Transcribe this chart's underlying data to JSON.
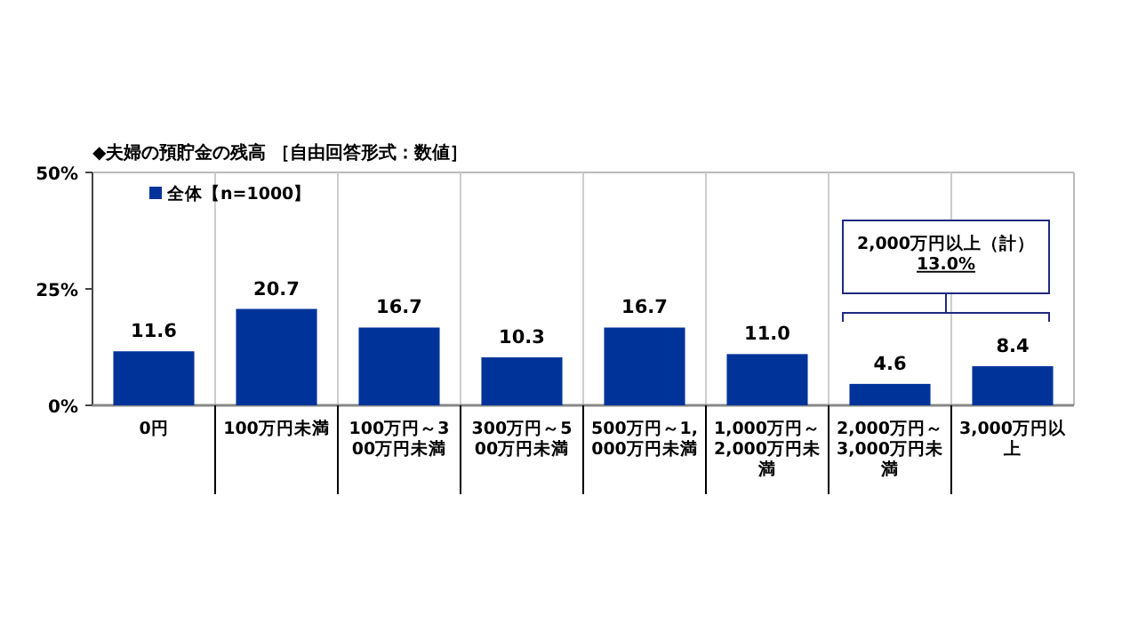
{
  "chart_data": {
    "type": "bar",
    "title": "◆夫婦の預貯金の残高 ［自由回答形式：数値］",
    "categories": [
      "0円",
      "100万円未満",
      "100万円～300万円未満",
      "300万円～500万円未満",
      "500万円～1,000万円未満",
      "1,000万円～2,000万円未満",
      "2,000万円～3,000万円未満",
      "3,000万円以上"
    ],
    "series": [
      {
        "name": "全体【n=1000】",
        "color": "#003399",
        "values": [
          11.6,
          20.7,
          16.7,
          10.3,
          16.7,
          11.0,
          4.6,
          8.4
        ],
        "value_labels": [
          "11.6",
          "20.7",
          "16.7",
          "10.3",
          "16.7",
          "11.0",
          "4.6",
          "8.4"
        ]
      }
    ],
    "ylim": [
      0,
      50
    ],
    "yticks": [
      {
        "value": 0,
        "label": "0%"
      },
      {
        "value": 25,
        "label": "25%"
      },
      {
        "value": 50,
        "label": "50%"
      }
    ],
    "grid": "x",
    "legend": "top left",
    "annotations": [
      "2,000万円以上（計）\n13.0%"
    ]
  }
}
